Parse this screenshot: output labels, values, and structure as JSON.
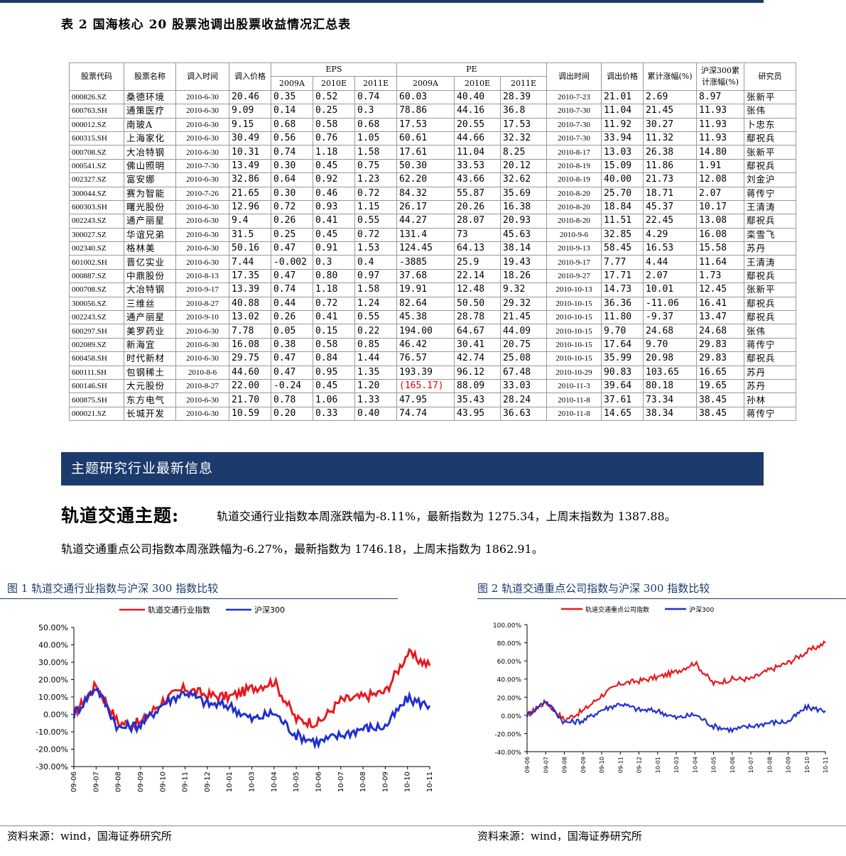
{
  "table": {
    "caption": "表 2  国海核心 20 股票池调出股票收益情况汇总表",
    "headers": {
      "code": "股票代码",
      "name": "股票名称",
      "in_date": "调入时间",
      "in_price": "调入价格",
      "eps": "EPS",
      "pe": "PE",
      "eps_2009": "2009A",
      "eps_2010": "2010E",
      "eps_2011": "2011E",
      "pe_2009": "2009A",
      "pe_2010": "2010E",
      "pe_2011": "2011E",
      "out_date": "调出时间",
      "out_price": "调出价格",
      "cum_gain": "累计涨幅(%)",
      "hs300_gain": "沪深300累计涨幅(%)",
      "analyst": "研究员"
    },
    "rows": [
      [
        "000826.SZ",
        "桑德环境",
        "2010-6-30",
        "20.46",
        "0.35",
        "0.52",
        "0.74",
        "60.03",
        "40.40",
        "28.39",
        "2010-7-23",
        "21.01",
        "2.69",
        "8.97",
        "张新平"
      ],
      [
        "600763.SH",
        "通策医疗",
        "2010-6-30",
        "9.09",
        "0.14",
        "0.25",
        "0.3",
        "78.86",
        "44.16",
        "36.8",
        "2010-7-30",
        "11.04",
        "21.45",
        "11.93",
        "张伟"
      ],
      [
        "000012.SZ",
        "南玻A",
        "2010-6-30",
        "9.15",
        "0.68",
        "0.58",
        "0.68",
        "17.53",
        "20.55",
        "17.53",
        "2010-7-30",
        "11.92",
        "30.27",
        "11.93",
        "卜忠东"
      ],
      [
        "600315.SH",
        "上海家化",
        "2010-6-30",
        "30.49",
        "0.56",
        "0.76",
        "1.05",
        "60.61",
        "44.66",
        "32.32",
        "2010-7-30",
        "33.94",
        "11.32",
        "11.93",
        "鄢祝兵"
      ],
      [
        "000708.SZ",
        "大冶特钢",
        "2010-6-30",
        "10.31",
        "0.74",
        "1.18",
        "1.58",
        "17.61",
        "11.04",
        "8.25",
        "2010-8-17",
        "13.03",
        "26.38",
        "14.80",
        "张新平"
      ],
      [
        "000541.SZ",
        "佛山照明",
        "2010-7-30",
        "13.49",
        "0.30",
        "0.45",
        "0.75",
        "50.30",
        "33.53",
        "20.12",
        "2010-8-19",
        "15.09",
        "11.86",
        "1.91",
        "鄢祝兵"
      ],
      [
        "002327.SZ",
        "富安娜",
        "2010-6-30",
        "32.86",
        "0.64",
        "0.92",
        "1.23",
        "62.20",
        "43.66",
        "32.62",
        "2010-8-19",
        "40.00",
        "21.73",
        "12.08",
        "刘金沪"
      ],
      [
        "300044.SZ",
        "赛为智能",
        "2010-7-26",
        "21.65",
        "0.30",
        "0.46",
        "0.72",
        "84.32",
        "55.87",
        "35.69",
        "2010-8-20",
        "25.70",
        "18.71",
        "2.07",
        "蒋传宁"
      ],
      [
        "600303.SH",
        "曙光股份",
        "2010-6-30",
        "12.96",
        "0.72",
        "0.93",
        "1.15",
        "26.17",
        "20.26",
        "16.38",
        "2010-8-20",
        "18.84",
        "45.37",
        "10.17",
        "王清涛"
      ],
      [
        "002243.SZ",
        "通产丽星",
        "2010-6-30",
        "9.4",
        "0.26",
        "0.41",
        "0.55",
        "44.27",
        "28.07",
        "20.93",
        "2010-8-20",
        "11.51",
        "22.45",
        "13.08",
        "鄢祝兵"
      ],
      [
        "300027.SZ",
        "华谊兄弟",
        "2010-6-30",
        "31.5",
        "0.25",
        "0.45",
        "0.72",
        "131.4",
        "73",
        "45.63",
        "2010-9-6",
        "32.85",
        "4.29",
        "16.08",
        "栾雪飞"
      ],
      [
        "002340.SZ",
        "格林美",
        "2010-6-30",
        "50.16",
        "0.47",
        "0.91",
        "1.53",
        "124.45",
        "64.13",
        "38.14",
        "2010-9-13",
        "58.45",
        "16.53",
        "15.58",
        "苏丹"
      ],
      [
        "601002.SH",
        "晋亿实业",
        "2010-6-30",
        "7.44",
        "-0.002",
        "0.3",
        "0.4",
        "-3885",
        "25.9",
        "19.43",
        "2010-9-17",
        "7.77",
        "4.44",
        "11.64",
        "王清涛"
      ],
      [
        "000887.SZ",
        "中鼎股份",
        "2010-8-13",
        "17.35",
        "0.47",
        "0.80",
        "0.97",
        "37.68",
        "22.14",
        "18.26",
        "2010-9-27",
        "17.71",
        "2.07",
        "1.73",
        "鄢祝兵"
      ],
      [
        "000708.SZ",
        "大冶特钢",
        "2010-9-17",
        "13.39",
        "0.74",
        "1.18",
        "1.58",
        "19.91",
        "12.48",
        "9.32",
        "2010-10-13",
        "14.73",
        "10.01",
        "12.45",
        "张新平"
      ],
      [
        "300056.SZ",
        "三维丝",
        "2010-8-27",
        "40.88",
        "0.44",
        "0.72",
        "1.24",
        "82.64",
        "50.50",
        "29.32",
        "2010-10-15",
        "36.36",
        "-11.06",
        "16.41",
        "鄢祝兵"
      ],
      [
        "002243.SZ",
        "通产丽星",
        "2010-9-10",
        "13.02",
        "0.26",
        "0.41",
        "0.55",
        "45.38",
        "28.78",
        "21.45",
        "2010-10-15",
        "11.80",
        "-9.37",
        "13.47",
        "鄢祝兵"
      ],
      [
        "600297.SH",
        "美罗药业",
        "2010-6-30",
        "7.78",
        "0.05",
        "0.15",
        "0.22",
        "194.00",
        "64.67",
        "44.09",
        "2010-10-15",
        "9.70",
        "24.68",
        "24.68",
        "张伟"
      ],
      [
        "002089.SZ",
        "新海宜",
        "2010-6-30",
        "16.08",
        "0.38",
        "0.58",
        "0.85",
        "46.42",
        "30.41",
        "20.75",
        "2010-10-15",
        "17.64",
        "9.70",
        "29.83",
        "蒋传宁"
      ],
      [
        "600458.SH",
        "时代新材",
        "2010-6-30",
        "29.75",
        "0.47",
        "0.84",
        "1.44",
        "76.57",
        "42.74",
        "25.08",
        "2010-10-15",
        "35.99",
        "20.98",
        "29.83",
        "鄢祝兵"
      ],
      [
        "600111.SH",
        "包钢稀土",
        "2010-8-6",
        "44.60",
        "0.47",
        "0.95",
        "1.35",
        "193.39",
        "96.12",
        "67.48",
        "2010-10-29",
        "90.83",
        "103.65",
        "16.65",
        "苏丹"
      ],
      [
        "600146.SH",
        "大元股份",
        "2010-8-27",
        "22.00",
        "-0.24",
        "0.45",
        "1.20",
        "(165.17)",
        "88.09",
        "33.03",
        "2010-11-3",
        "39.64",
        "80.18",
        "19.65",
        "苏丹"
      ],
      [
        "600875.SH",
        "东方电气",
        "2010-6-30",
        "21.70",
        "0.78",
        "1.06",
        "1.33",
        "47.95",
        "35.43",
        "28.24",
        "2010-11-8",
        "37.61",
        "73.34",
        "38.45",
        "孙林"
      ],
      [
        "000021.SZ",
        "长城开发",
        "2010-6-30",
        "10.59",
        "0.20",
        "0.33",
        "0.40",
        "74.74",
        "43.95",
        "36.63",
        "2010-11-8",
        "14.65",
        "38.34",
        "38.45",
        "蒋传宁"
      ]
    ]
  },
  "section": {
    "band_title": "主题研究行业最新信息",
    "theme_title": "轨道交通主题:",
    "line1": "轨道交通行业指数本周涨跌幅为-8.11%，最新指数为 1275.34，上周末指数为 1387.88。",
    "line2": "轨道交通重点公司指数本周涨跌幅为-6.27%，最新指数为 1746.18，上周末指数为 1862.91。"
  },
  "figures": {
    "fig1_caption": "图 1   轨道交通行业指数与沪深 300 指数比较",
    "fig2_caption": "图 2   轨道交通重点公司指数与沪深 300 指数比较",
    "source1": "资料来源：wind，国海证券研究所",
    "source2": "资料来源：wind，国海证券研究所"
  },
  "chart_data": [
    {
      "type": "line",
      "title": "",
      "legend": [
        "轨道交通行业指数",
        "沪深300"
      ],
      "colors": [
        "#e8191e",
        "#1f2fd0"
      ],
      "x": [
        "09-06",
        "09-07",
        "09-08",
        "09-09",
        "09-10",
        "09-11",
        "09-12",
        "10-01",
        "10-03",
        "10-04",
        "10-05",
        "10-06",
        "10-07",
        "10-08",
        "10-09",
        "10-10",
        "10-11"
      ],
      "yticks": [
        "50.00%",
        "40.00%",
        "30.00%",
        "20.00%",
        "10.00%",
        "0.00%",
        "-10.00%",
        "-20.00%",
        "-30.00%"
      ],
      "ylim": [
        -30,
        50
      ],
      "series": [
        {
          "name": "轨道交通行业指数",
          "values": [
            0,
            17,
            -5,
            -5,
            8,
            15,
            11,
            10,
            15,
            19,
            -3,
            -5,
            8,
            10,
            13,
            35,
            28
          ]
        },
        {
          "name": "沪深300",
          "values": [
            0,
            16,
            -8,
            -6,
            6,
            13,
            6,
            5,
            -3,
            1,
            -12,
            -16,
            -12,
            -8,
            -7,
            9,
            5
          ]
        }
      ]
    },
    {
      "type": "line",
      "title": "",
      "legend": [
        "轨道交通重点公司指数",
        "沪深300"
      ],
      "colors": [
        "#e8191e",
        "#1f2fd0"
      ],
      "x": [
        "09-06",
        "09-07",
        "09-08",
        "09-09",
        "09-10",
        "09-11",
        "09-12",
        "10-01",
        "10-03",
        "10-04",
        "10-05",
        "10-06",
        "10-07",
        "10-08",
        "10-09",
        "10-10",
        "10-11"
      ],
      "yticks": [
        "100.00%",
        "80.00%",
        "60.00%",
        "40.00%",
        "20.00%",
        "0.00%",
        "-20.00%",
        "-40.00%"
      ],
      "ylim": [
        -40,
        100
      ],
      "series": [
        {
          "name": "轨道交通重点公司指数",
          "values": [
            0,
            15,
            -5,
            5,
            22,
            35,
            38,
            42,
            48,
            58,
            35,
            40,
            40,
            50,
            58,
            70,
            80
          ]
        },
        {
          "name": "沪深300",
          "values": [
            0,
            16,
            -8,
            -6,
            6,
            13,
            6,
            5,
            -3,
            1,
            -12,
            -16,
            -12,
            -8,
            -7,
            9,
            5
          ]
        }
      ]
    }
  ]
}
